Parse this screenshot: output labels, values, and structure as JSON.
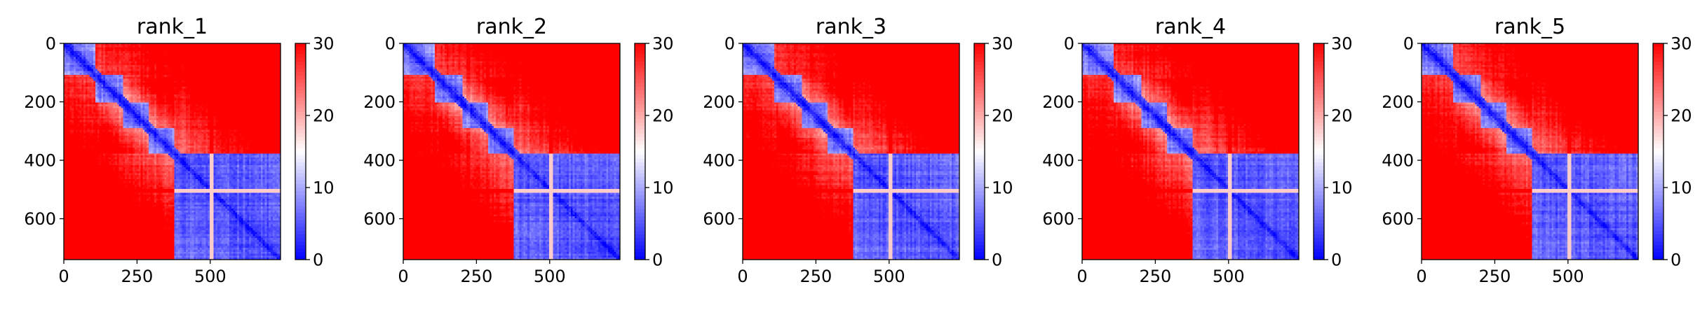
{
  "chart_data": [
    {
      "type": "heatmap",
      "title": "rank_1",
      "xlabel": "",
      "ylabel": "",
      "x_ticks": [
        0,
        250,
        500
      ],
      "y_ticks": [
        0,
        200,
        400,
        600
      ],
      "xlim": [
        0,
        740
      ],
      "ylim": [
        740,
        0
      ],
      "colormap": "bwr",
      "colorbar": {
        "vmin": 0,
        "vmax": 30,
        "ticks": [
          0,
          10,
          20,
          30
        ]
      },
      "domains": [
        [
          0,
          110
        ],
        [
          110,
          200
        ],
        [
          200,
          290
        ],
        [
          290,
          375
        ],
        [
          375,
          740
        ]
      ],
      "noise_seed": 11
    },
    {
      "type": "heatmap",
      "title": "rank_2",
      "xlabel": "",
      "ylabel": "",
      "x_ticks": [
        0,
        250,
        500
      ],
      "y_ticks": [
        0,
        200,
        400,
        600
      ],
      "xlim": [
        0,
        740
      ],
      "ylim": [
        740,
        0
      ],
      "colormap": "bwr",
      "colorbar": {
        "vmin": 0,
        "vmax": 30,
        "ticks": [
          0,
          10,
          20,
          30
        ]
      },
      "domains": [
        [
          0,
          110
        ],
        [
          110,
          200
        ],
        [
          200,
          290
        ],
        [
          290,
          375
        ],
        [
          375,
          740
        ]
      ],
      "noise_seed": 23
    },
    {
      "type": "heatmap",
      "title": "rank_3",
      "xlabel": "",
      "ylabel": "",
      "x_ticks": [
        0,
        250,
        500
      ],
      "y_ticks": [
        0,
        200,
        400,
        600
      ],
      "xlim": [
        0,
        740
      ],
      "ylim": [
        740,
        0
      ],
      "colormap": "bwr",
      "colorbar": {
        "vmin": 0,
        "vmax": 30,
        "ticks": [
          0,
          10,
          20,
          30
        ]
      },
      "domains": [
        [
          0,
          110
        ],
        [
          110,
          200
        ],
        [
          200,
          290
        ],
        [
          290,
          375
        ],
        [
          375,
          740
        ]
      ],
      "noise_seed": 37
    },
    {
      "type": "heatmap",
      "title": "rank_4",
      "xlabel": "",
      "ylabel": "",
      "x_ticks": [
        0,
        250,
        500
      ],
      "y_ticks": [
        0,
        200,
        400,
        600
      ],
      "xlim": [
        0,
        740
      ],
      "ylim": [
        740,
        0
      ],
      "colormap": "bwr",
      "colorbar": {
        "vmin": 0,
        "vmax": 30,
        "ticks": [
          0,
          10,
          20,
          30
        ]
      },
      "domains": [
        [
          0,
          110
        ],
        [
          110,
          200
        ],
        [
          200,
          290
        ],
        [
          290,
          375
        ],
        [
          375,
          740
        ]
      ],
      "noise_seed": 41
    },
    {
      "type": "heatmap",
      "title": "rank_5",
      "xlabel": "",
      "ylabel": "",
      "x_ticks": [
        0,
        250,
        500
      ],
      "y_ticks": [
        0,
        200,
        400,
        600
      ],
      "xlim": [
        0,
        740
      ],
      "ylim": [
        740,
        0
      ],
      "colormap": "bwr",
      "colorbar": {
        "vmin": 0,
        "vmax": 30,
        "ticks": [
          0,
          10,
          20,
          30
        ]
      },
      "domains": [
        [
          0,
          110
        ],
        [
          110,
          200
        ],
        [
          200,
          290
        ],
        [
          290,
          375
        ],
        [
          375,
          740
        ]
      ],
      "noise_seed": 53
    }
  ]
}
